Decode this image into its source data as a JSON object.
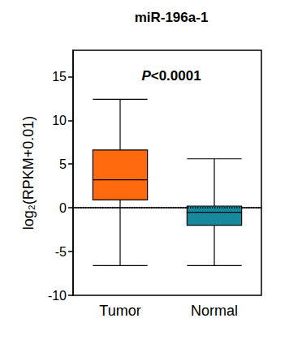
{
  "chart_data": {
    "type": "boxplot",
    "title": "miR-196a-1",
    "annotation": "P<0.0001",
    "ylabel": "log₂(RPKM+0.01)",
    "categories": [
      "Tumor",
      "Normal"
    ],
    "boxes": [
      {
        "min": -6.6,
        "q1": 0.9,
        "median": 3.2,
        "q3": 6.6,
        "max": 12.4
      },
      {
        "min": -6.6,
        "q1": -2.0,
        "median": -0.5,
        "q3": 0.2,
        "max": 5.6
      }
    ],
    "colors": [
      "#ff6a0e",
      "#16899c"
    ],
    "ylim": [
      -10,
      18
    ],
    "yticks": [
      -10,
      -5,
      0,
      5,
      10,
      15
    ],
    "reference_line": 0,
    "grid": false
  }
}
